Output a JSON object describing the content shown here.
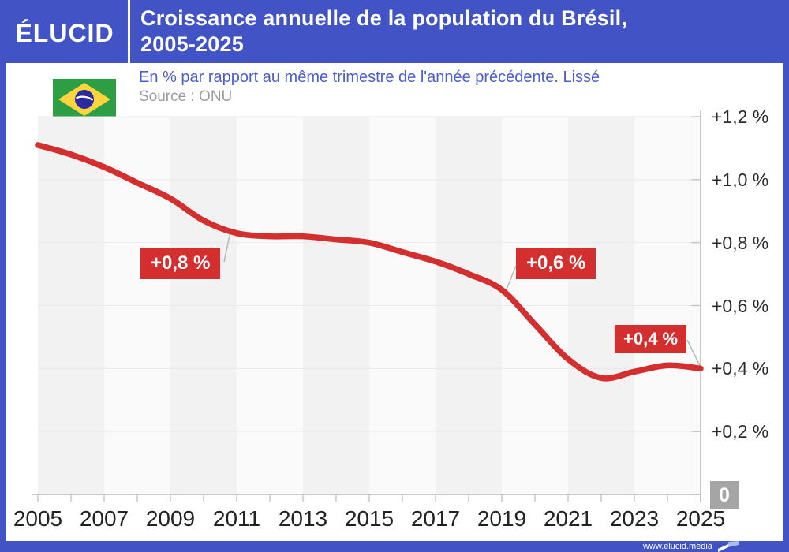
{
  "header": {
    "logo": "ÉLUCID",
    "title_line1": "Croissance annuelle de la population du Brésil,",
    "title_line2": "2005-2025"
  },
  "subheader": {
    "subtitle": "En % par rapport au même trimestre de l'année précédente. Lissé",
    "source": "Source : ONU",
    "flag_icon": "brazil-flag-icon"
  },
  "footer": {
    "url": "www.elucid.media",
    "icon": "elucid-flag-icon"
  },
  "colors": {
    "brand_blue": "#4254c5",
    "line_red": "#d32f2f",
    "subtitle_blue": "#4a5ecf",
    "source_gray": "#9b9b9b",
    "zero_badge_gray": "#a5a5a5",
    "stripe_gray": "#f2f2f2",
    "stripe_light": "#fafafa",
    "grid_gray": "#e9e9e9",
    "axis_gray": "#b8b8b8",
    "connector_gray": "#b8b8b8"
  },
  "chart_data": {
    "type": "line",
    "title": "Croissance annuelle de la population du Brésil, 2005-2025",
    "subtitle": "En % par rapport au même trimestre de l'année précédente. Lissé",
    "source": "Source : ONU",
    "xlabel": "",
    "ylabel": "",
    "x": [
      2005,
      2006,
      2007,
      2008,
      2009,
      2010,
      2011,
      2012,
      2013,
      2014,
      2015,
      2016,
      2017,
      2018,
      2019,
      2020,
      2021,
      2022,
      2023,
      2024,
      2025
    ],
    "series": [
      {
        "name": "Croissance annuelle de la population du Brésil (%)",
        "values": [
          1.11,
          1.08,
          1.04,
          0.99,
          0.94,
          0.87,
          0.83,
          0.82,
          0.82,
          0.81,
          0.8,
          0.77,
          0.74,
          0.7,
          0.65,
          0.54,
          0.43,
          0.37,
          0.39,
          0.41,
          0.4
        ]
      }
    ],
    "ylim": [
      0,
      1.2
    ],
    "y_ticks": [
      1.2,
      1.0,
      0.8,
      0.6,
      0.4,
      0.2,
      0
    ],
    "y_tick_labels": [
      "+1,2 %",
      "+1,0 %",
      "+0,8 %",
      "+0,6 %",
      "+0,4 %",
      "+0,2 %",
      "0"
    ],
    "x_tick_labels": [
      "2005",
      "2007",
      "2009",
      "2011",
      "2013",
      "2015",
      "2017",
      "2019",
      "2021",
      "2023",
      "2025"
    ],
    "grid": "horizontal",
    "legend": "none",
    "annotations": [
      {
        "label": "+0,8 %",
        "year": 2010.8,
        "value": 0.83
      },
      {
        "label": "+0,6 %",
        "year": 2019.1,
        "value": 0.64
      },
      {
        "label": "+0,4 %",
        "year": 2025,
        "value": 0.405
      }
    ]
  }
}
